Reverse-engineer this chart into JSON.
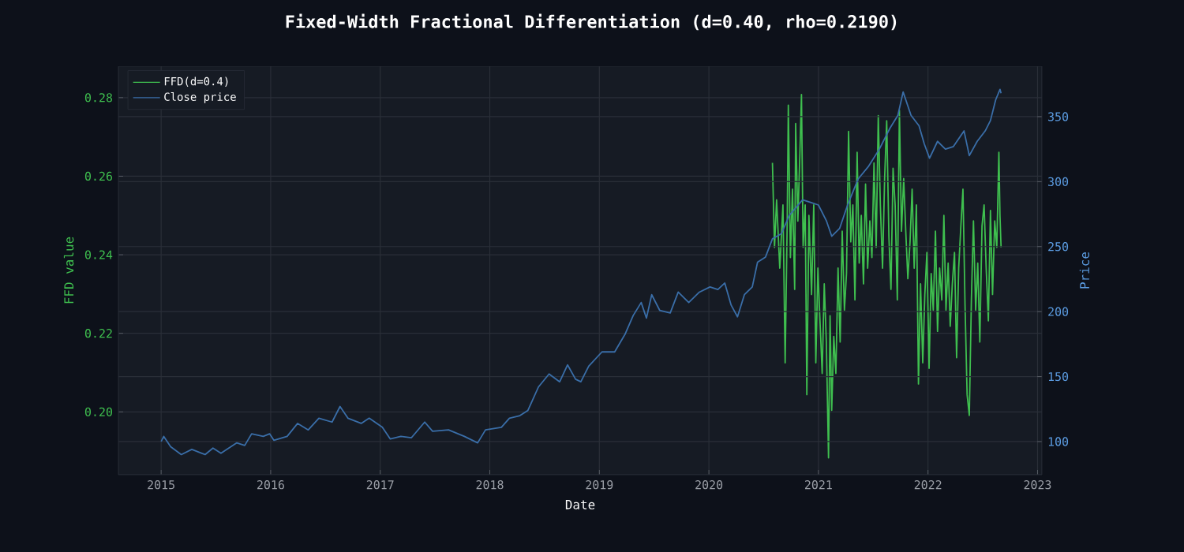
{
  "chart_data": {
    "type": "line",
    "title": "Fixed-Width Fractional Differentiation (d=0.40, rho=0.2190)",
    "xlabel": "Date",
    "ylabel": "FFD value",
    "y2label": "Price",
    "xlim": [
      2014.61,
      2023.04
    ],
    "xticks": [
      2015,
      2016,
      2017,
      2018,
      2019,
      2020,
      2021,
      2022,
      2023
    ],
    "ylim": [
      0.184,
      0.288
    ],
    "yticks": [
      {
        "value": 0.2,
        "label": "0.20"
      },
      {
        "value": 0.22,
        "label": "0.22"
      },
      {
        "value": 0.24,
        "label": "0.24"
      },
      {
        "value": 0.26,
        "label": "0.26"
      },
      {
        "value": 0.28,
        "label": "0.28"
      }
    ],
    "y2lim": [
      74.5,
      388.8
    ],
    "y2ticks": [
      100,
      150,
      200,
      250,
      300,
      350
    ],
    "grid": true,
    "legend": "top left",
    "series": [
      {
        "name": "FFD(d=0.4)",
        "color": "#3fbf4f",
        "x": [
          2020.58,
          2020.599,
          2020.618,
          2020.647,
          2020.676,
          2020.696,
          2020.715,
          2020.725,
          2020.744,
          2020.763,
          2020.783,
          2020.792,
          2020.812,
          2020.831,
          2020.845,
          2020.86,
          2020.879,
          2020.894,
          2020.913,
          2020.937,
          2020.957,
          2020.976,
          2020.995,
          2021.014,
          2021.034,
          2021.053,
          2021.072,
          2021.092,
          2021.106,
          2021.121,
          2021.14,
          2021.159,
          2021.179,
          2021.198,
          2021.217,
          2021.237,
          2021.256,
          2021.275,
          2021.295,
          2021.314,
          2021.333,
          2021.353,
          2021.372,
          2021.391,
          2021.411,
          2021.43,
          2021.449,
          2021.469,
          2021.488,
          2021.507,
          2021.527,
          2021.546,
          2021.565,
          2021.585,
          2021.604,
          2021.623,
          2021.643,
          2021.662,
          2021.681,
          2021.7,
          2021.72,
          2021.739,
          2021.758,
          2021.778,
          2021.797,
          2021.816,
          2021.836,
          2021.855,
          2021.874,
          2021.894,
          2021.913,
          2021.932,
          2021.952,
          2021.971,
          2021.99,
          2022.01,
          2022.029,
          2022.048,
          2022.068,
          2022.087,
          2022.106,
          2022.126,
          2022.145,
          2022.164,
          2022.184,
          2022.203,
          2022.222,
          2022.242,
          2022.261,
          2022.28,
          2022.3,
          2022.319,
          2022.338,
          2022.357,
          2022.377,
          2022.396,
          2022.415,
          2022.435,
          2022.454,
          2022.473,
          2022.493,
          2022.512,
          2022.531,
          2022.551,
          2022.57,
          2022.589,
          2022.609,
          2022.628,
          2022.647,
          2022.657,
          2022.667
        ],
        "values": [
          0.2634,
          0.2419,
          0.254,
          0.2366,
          0.2527,
          0.2125,
          0.2486,
          0.2781,
          0.2393,
          0.2567,
          0.2312,
          0.2734,
          0.2486,
          0.2661,
          0.2808,
          0.2419,
          0.2527,
          0.2044,
          0.25,
          0.2299,
          0.2527,
          0.2125,
          0.2366,
          0.2232,
          0.2098,
          0.2326,
          0.2178,
          0.1883,
          0.2245,
          0.2004,
          0.2192,
          0.2098,
          0.2366,
          0.2178,
          0.246,
          0.2259,
          0.2352,
          0.2714,
          0.2433,
          0.2527,
          0.2285,
          0.2661,
          0.2379,
          0.25,
          0.2326,
          0.258,
          0.2366,
          0.2486,
          0.2393,
          0.2634,
          0.2419,
          0.2754,
          0.2527,
          0.2366,
          0.2594,
          0.2741,
          0.2446,
          0.2312,
          0.262,
          0.2527,
          0.2285,
          0.2768,
          0.246,
          0.2594,
          0.246,
          0.2339,
          0.2433,
          0.2567,
          0.2366,
          0.2527,
          0.2071,
          0.2326,
          0.2125,
          0.2299,
          0.2406,
          0.2111,
          0.2352,
          0.2259,
          0.246,
          0.2205,
          0.2366,
          0.2285,
          0.25,
          0.2259,
          0.2379,
          0.2218,
          0.2326,
          0.2406,
          0.2138,
          0.2366,
          0.2473,
          0.2567,
          0.2272,
          0.2044,
          0.1991,
          0.2285,
          0.2486,
          0.2259,
          0.2379,
          0.2178,
          0.2473,
          0.2527,
          0.2366,
          0.2232,
          0.2513,
          0.2299,
          0.2486,
          0.2419,
          0.2661,
          0.25,
          0.2419
        ]
      },
      {
        "name": "Close price",
        "color": "#3a6ea8",
        "axis": "y2",
        "x": [
          2015.0,
          2015.024,
          2015.087,
          2015.184,
          2015.28,
          2015.401,
          2015.473,
          2015.546,
          2015.691,
          2015.763,
          2015.826,
          2015.932,
          2015.99,
          2016.029,
          2016.15,
          2016.246,
          2016.343,
          2016.44,
          2016.56,
          2016.633,
          2016.705,
          2016.826,
          2016.899,
          2017.019,
          2017.092,
          2017.188,
          2017.285,
          2017.406,
          2017.478,
          2017.623,
          2017.768,
          2017.889,
          2017.961,
          2018.106,
          2018.179,
          2018.275,
          2018.348,
          2018.444,
          2018.541,
          2018.638,
          2018.71,
          2018.783,
          2018.831,
          2018.903,
          2019.024,
          2019.14,
          2019.237,
          2019.309,
          2019.382,
          2019.43,
          2019.478,
          2019.551,
          2019.647,
          2019.72,
          2019.816,
          2019.913,
          2020.01,
          2020.082,
          2020.145,
          2020.203,
          2020.261,
          2020.324,
          2020.396,
          2020.444,
          2020.517,
          2020.58,
          2020.662,
          2020.734,
          2020.855,
          2020.928,
          2021.0,
          2021.072,
          2021.121,
          2021.193,
          2021.266,
          2021.362,
          2021.459,
          2021.556,
          2021.652,
          2021.725,
          2021.773,
          2021.845,
          2021.918,
          2021.966,
          2022.014,
          2022.087,
          2022.159,
          2022.232,
          2022.329,
          2022.377,
          2022.449,
          2022.522,
          2022.57,
          2022.618,
          2022.657,
          2022.667
        ],
        "values": [
          100,
          104,
          96,
          90,
          94,
          90,
          95,
          91,
          99,
          97,
          106,
          104,
          106,
          101,
          104,
          114,
          109,
          118,
          115,
          127,
          118,
          114,
          118,
          111,
          102,
          104,
          103,
          115,
          108,
          109,
          104,
          99,
          109,
          111,
          118,
          120,
          124,
          142,
          152,
          146,
          159,
          148,
          146,
          158,
          169,
          169,
          183,
          197,
          207,
          195,
          213,
          201,
          199,
          215,
          207,
          215,
          219,
          217,
          222,
          205,
          196,
          213,
          219,
          238,
          242,
          256,
          260,
          274,
          286,
          284,
          282,
          270,
          258,
          264,
          282,
          302,
          312,
          325,
          341,
          351,
          369,
          351,
          343,
          329,
          318,
          331,
          325,
          327,
          339,
          320,
          331,
          339,
          347,
          363,
          371,
          368
        ]
      }
    ]
  }
}
